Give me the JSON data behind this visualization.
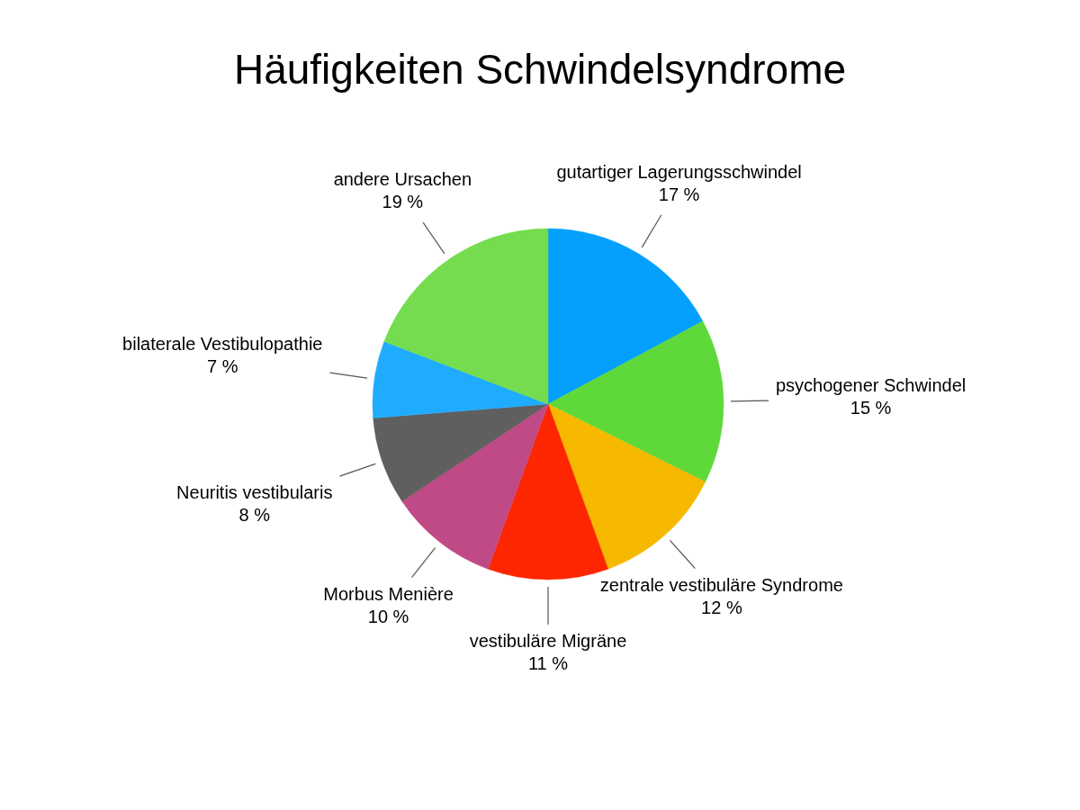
{
  "chart_data": {
    "type": "pie",
    "title": "Häufigkeiten Schwindelsyndrome",
    "categories": [
      "gutartiger Lagerungsschwindel",
      "psychogener Schwindel",
      "zentrale vestibuläre Syndrome",
      "vestibuläre Migräne",
      "Morbus Menière",
      "Neuritis vestibularis",
      "bilaterale Vestibulopathie",
      "andere Ursachen"
    ],
    "values": [
      17,
      15,
      12,
      11,
      10,
      8,
      7,
      19
    ],
    "colors": [
      "#05a0fe",
      "#5fd93a",
      "#f6b900",
      "#fe2600",
      "#c04a86",
      "#5f5f5f",
      "#20acfe",
      "#74dc4e"
    ],
    "value_labels": [
      "17 %",
      "15 %",
      "12 %",
      "11 %",
      "10 %",
      "8 %",
      "7 %",
      "19 %"
    ]
  }
}
